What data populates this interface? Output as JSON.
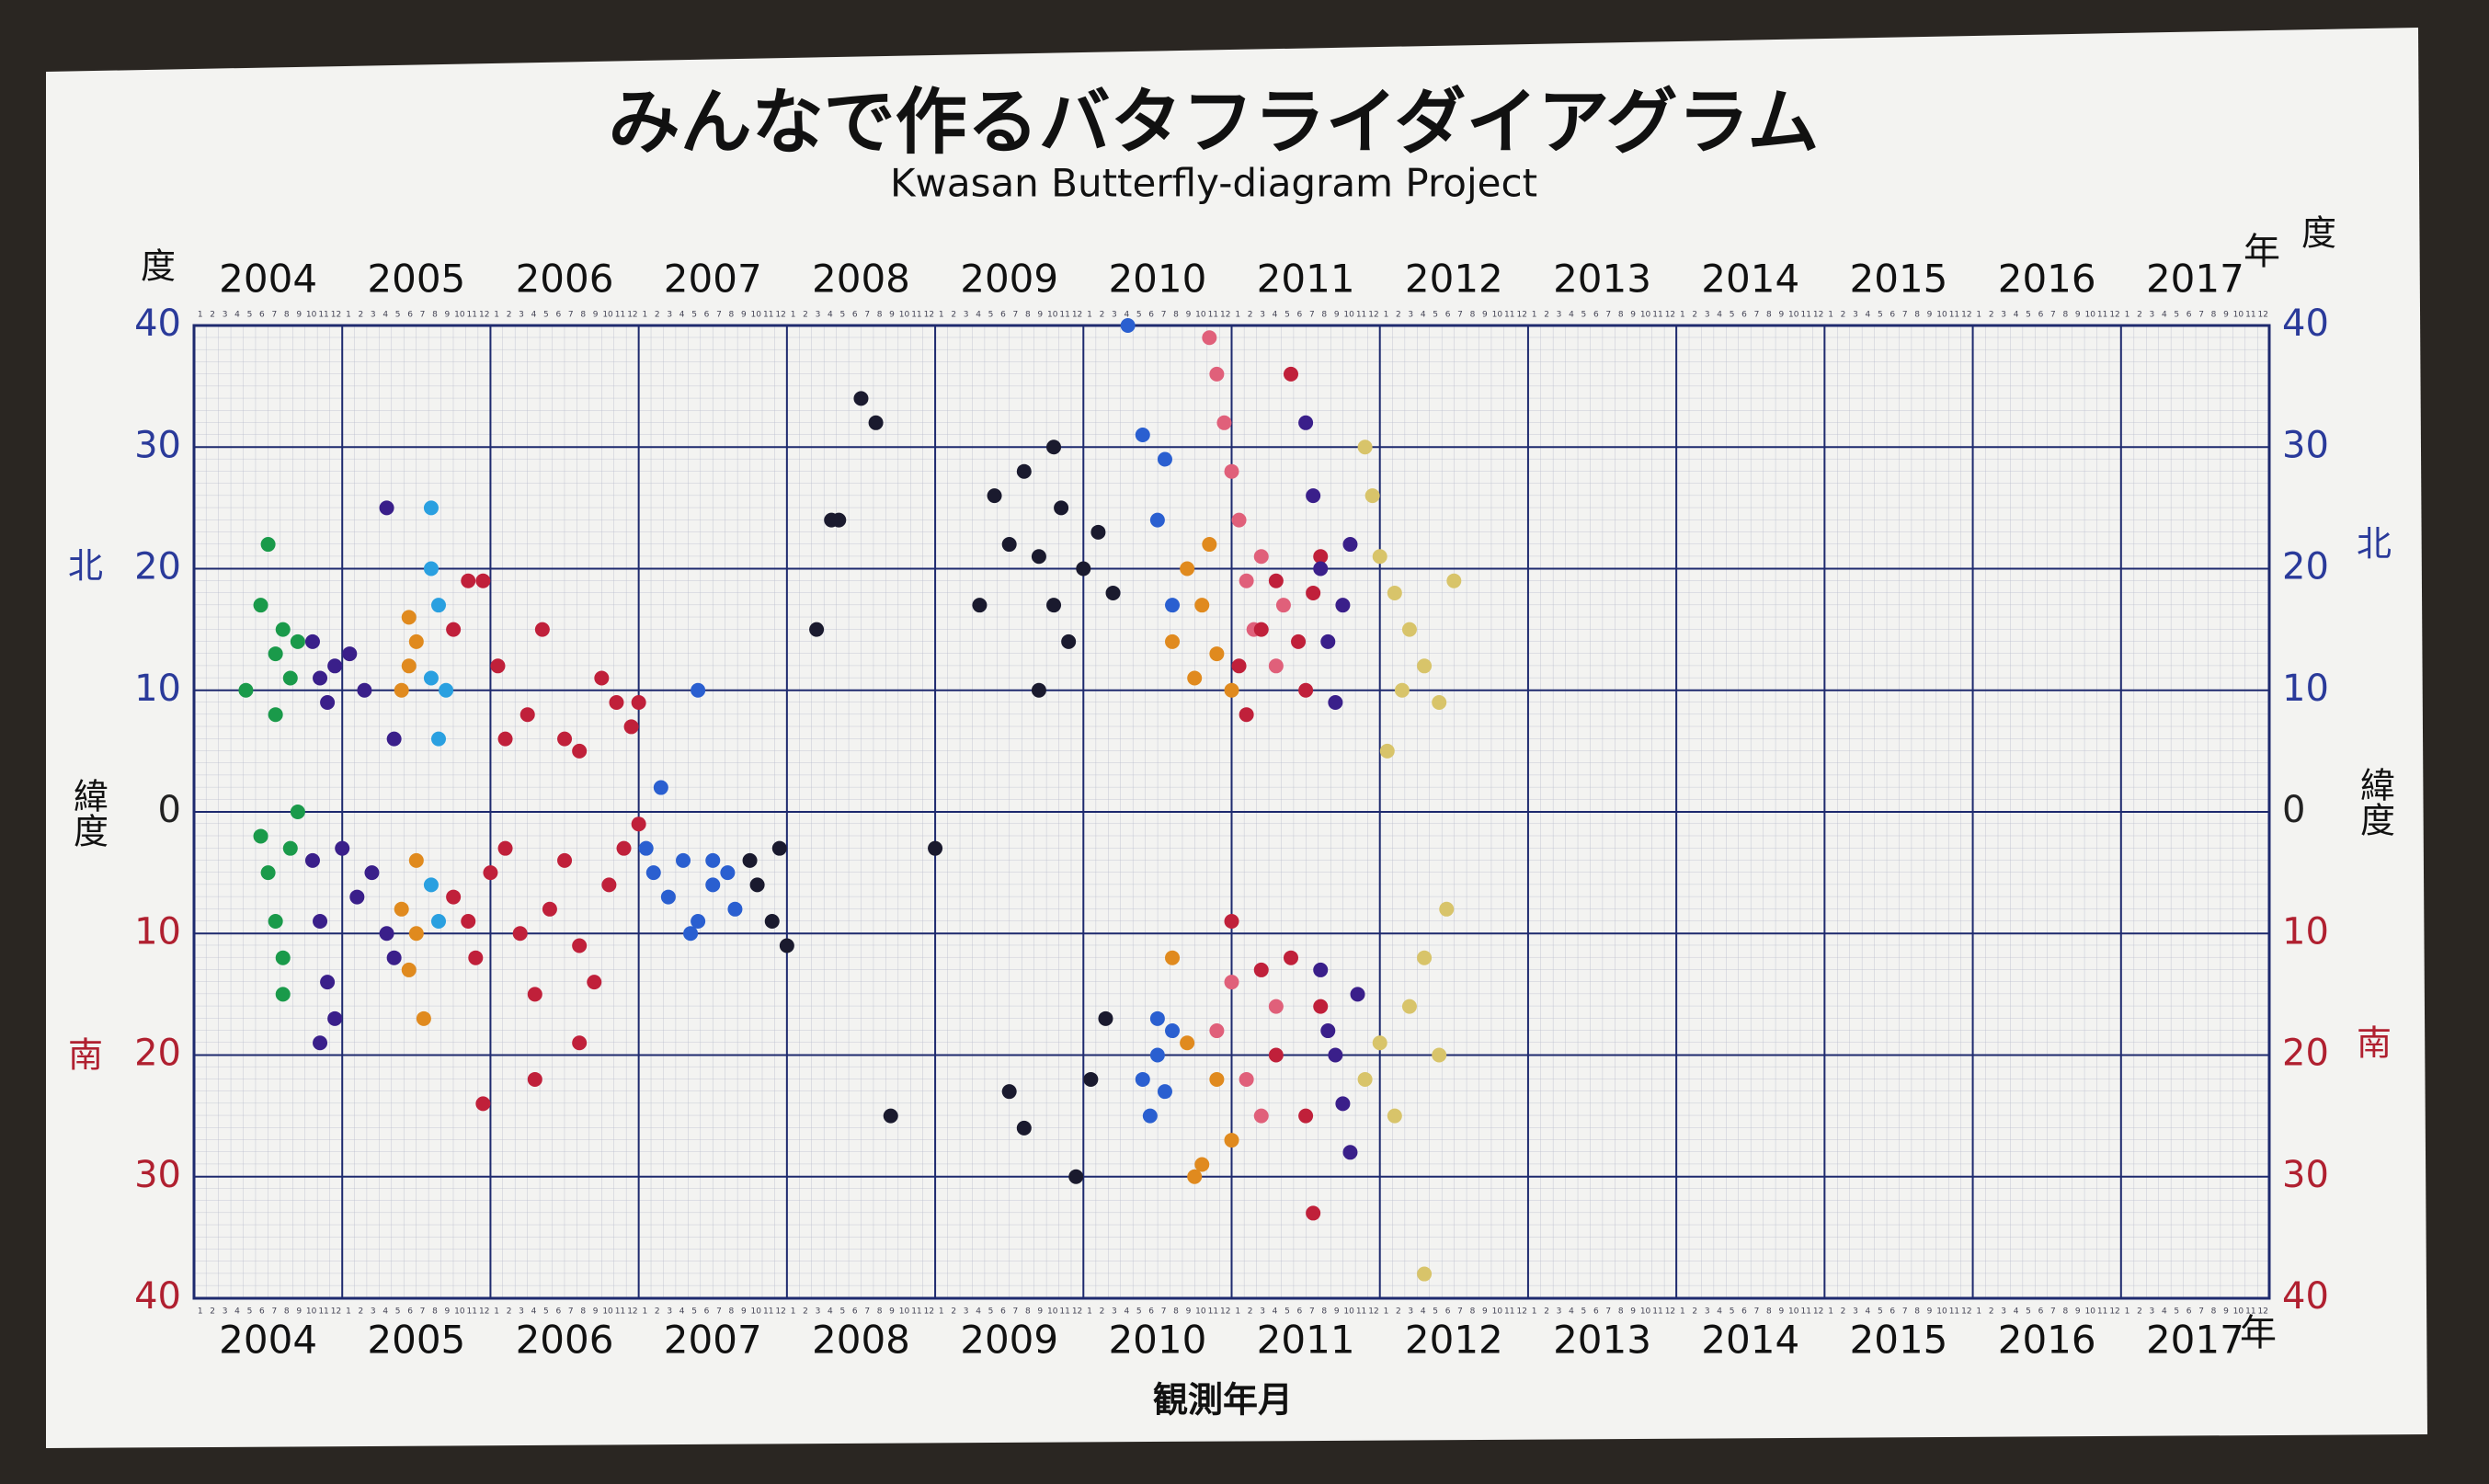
{
  "chart_data": {
    "type": "scatter",
    "title": "みんなで作るバタフライダイアグラム",
    "subtitle": "Kwasan Butterfly-diagram Project",
    "xlabel": "観測年月",
    "ylabel": "緯度",
    "x_unit": "年",
    "y_unit": "度",
    "north_label": "北",
    "south_label": "南",
    "xlim": [
      2004,
      2018
    ],
    "xticks": [
      2004,
      2005,
      2006,
      2007,
      2008,
      2009,
      2010,
      2011,
      2012,
      2013,
      2014,
      2015,
      2016,
      2017
    ],
    "month_labels": [
      1,
      2,
      3,
      4,
      5,
      6,
      7,
      8,
      9,
      10,
      11,
      12
    ],
    "ylim": [
      -40,
      40
    ],
    "yticks": [
      {
        "value": -40,
        "label": "40"
      },
      {
        "value": -30,
        "label": "30"
      },
      {
        "value": -20,
        "label": "20"
      },
      {
        "value": -10,
        "label": "10"
      },
      0,
      10,
      20,
      30,
      40
    ],
    "grid": true,
    "series": [
      {
        "color": "#1a9a4a",
        "x": [
          2004.35,
          2004.45,
          2004.5,
          2004.55,
          2004.55,
          2004.6,
          2004.65,
          2004.7,
          2004.5,
          2004.55,
          2004.6,
          2004.65,
          2004.7,
          2004.6,
          2004.45
        ],
        "values": [
          10,
          17,
          22,
          13,
          8,
          15,
          11,
          14,
          -5,
          -9,
          -12,
          -3,
          0,
          -15,
          -2
        ]
      },
      {
        "color": "#3a1f8a",
        "x": [
          2004.8,
          2004.85,
          2004.9,
          2004.95,
          2005.05,
          2005.15,
          2005.3,
          2005.35,
          2004.8,
          2004.85,
          2004.9,
          2004.95,
          2005.1,
          2005.2,
          2005.3,
          2005.35,
          2004.85,
          2005.0
        ],
        "values": [
          14,
          11,
          9,
          12,
          13,
          10,
          25,
          6,
          -4,
          -9,
          -14,
          -17,
          -7,
          -5,
          -10,
          -12,
          -19,
          -3
        ]
      },
      {
        "color": "#e08a1e",
        "x": [
          2005.4,
          2005.45,
          2005.5,
          2005.45,
          2005.5,
          2005.4,
          2005.45,
          2005.55,
          2005.5
        ],
        "values": [
          10,
          16,
          14,
          12,
          -4,
          -8,
          -13,
          -17,
          -10
        ]
      },
      {
        "color": "#2aa0e0",
        "x": [
          2005.6,
          2005.6,
          2005.65,
          2005.6,
          2005.7,
          2005.65,
          2005.6,
          2005.65
        ],
        "values": [
          25,
          20,
          17,
          11,
          10,
          6,
          -6,
          -9
        ]
      },
      {
        "color": "#c0203a",
        "x": [
          2005.75,
          2005.85,
          2005.95,
          2006.05,
          2006.1,
          2006.25,
          2006.35,
          2006.5,
          2006.6,
          2006.75,
          2006.85,
          2006.95,
          2007.0,
          2005.75,
          2005.85,
          2005.9,
          2006.0,
          2006.1,
          2006.2,
          2006.3,
          2006.4,
          2006.5,
          2006.6,
          2006.7,
          2006.8,
          2006.9,
          2007.0,
          2005.95,
          2006.3,
          2006.6
        ],
        "values": [
          15,
          19,
          19,
          12,
          6,
          8,
          15,
          6,
          5,
          11,
          9,
          7,
          9,
          -7,
          -9,
          -12,
          -5,
          -3,
          -10,
          -15,
          -8,
          -4,
          -11,
          -14,
          -6,
          -3,
          -1,
          -24,
          -22,
          -19
        ]
      },
      {
        "color": "#2a5fd0",
        "x": [
          2007.05,
          2007.1,
          2007.2,
          2007.3,
          2007.4,
          2007.5,
          2007.6,
          2007.65,
          2007.15,
          2007.35,
          2007.5,
          2007.4
        ],
        "values": [
          -3,
          -5,
          -7,
          -4,
          -9,
          -6,
          -5,
          -8,
          2,
          -10,
          -4,
          10
        ]
      },
      {
        "color": "#1a1a2e",
        "x": [
          2007.75,
          2007.8,
          2007.9,
          2007.95,
          2008.0,
          2008.2,
          2008.3,
          2008.35,
          2008.5,
          2008.6,
          2008.7,
          2009.0,
          2009.3,
          2009.4,
          2009.5,
          2009.6,
          2009.7,
          2009.8,
          2009.85,
          2009.9,
          2010.0,
          2010.1,
          2010.2,
          2009.5,
          2009.6,
          2009.95,
          2010.05,
          2010.15,
          2009.7,
          2009.8
        ],
        "values": [
          -4,
          -6,
          -9,
          -3,
          -11,
          15,
          24,
          24,
          34,
          32,
          -25,
          -3,
          17,
          26,
          22,
          28,
          21,
          30,
          25,
          14,
          20,
          23,
          18,
          -23,
          -26,
          -30,
          -22,
          -17,
          10,
          17
        ]
      },
      {
        "color": "#2a5fd0",
        "x": [
          2010.3,
          2010.4,
          2010.5,
          2010.55,
          2010.6,
          2010.5,
          2010.6,
          2010.4,
          2010.45,
          2010.5,
          2010.55
        ],
        "values": [
          40,
          31,
          24,
          29,
          17,
          -20,
          -18,
          -22,
          -25,
          -17,
          -23
        ]
      },
      {
        "color": "#e08a1e",
        "x": [
          2010.6,
          2010.7,
          2010.75,
          2010.8,
          2010.85,
          2010.9,
          2011.0,
          2010.6,
          2010.7,
          2010.8,
          2010.9,
          2011.0,
          2010.75
        ],
        "values": [
          14,
          20,
          11,
          17,
          22,
          13,
          10,
          -12,
          -19,
          -29,
          -22,
          -27,
          -30
        ]
      },
      {
        "color": "#e0607a",
        "x": [
          2010.85,
          2010.9,
          2010.95,
          2011.0,
          2011.05,
          2011.1,
          2011.15,
          2011.2,
          2011.3,
          2011.35,
          2010.9,
          2011.0,
          2011.1,
          2011.2,
          2011.3
        ],
        "values": [
          39,
          36,
          32,
          28,
          24,
          19,
          15,
          21,
          12,
          17,
          -18,
          -14,
          -22,
          -25,
          -16
        ]
      },
      {
        "color": "#c0203a",
        "x": [
          2011.05,
          2011.1,
          2011.2,
          2011.3,
          2011.4,
          2011.45,
          2011.5,
          2011.55,
          2011.6,
          2011.2,
          2011.3,
          2011.4,
          2011.5,
          2011.6,
          2011.0,
          2011.55
        ],
        "values": [
          12,
          8,
          15,
          19,
          36,
          14,
          10,
          18,
          21,
          -13,
          -20,
          -12,
          -25,
          -16,
          -9,
          -33
        ]
      },
      {
        "color": "#3a1f8a",
        "x": [
          2011.5,
          2011.55,
          2011.6,
          2011.65,
          2011.7,
          2011.75,
          2011.8,
          2011.6,
          2011.65,
          2011.7,
          2011.75,
          2011.8,
          2011.85
        ],
        "values": [
          32,
          26,
          20,
          14,
          9,
          17,
          22,
          -13,
          -18,
          -20,
          -24,
          -28,
          -15
        ]
      },
      {
        "color": "#d8c46a",
        "x": [
          2011.9,
          2011.95,
          2012.0,
          2012.1,
          2012.2,
          2012.3,
          2012.4,
          2012.5,
          2012.05,
          2012.15,
          2011.9,
          2012.0,
          2012.1,
          2012.2,
          2012.3,
          2012.4,
          2012.45,
          2012.3
        ],
        "values": [
          30,
          26,
          21,
          18,
          15,
          12,
          9,
          19,
          5,
          10,
          -22,
          -19,
          -25,
          -16,
          -12,
          -20,
          -8,
          -38
        ]
      }
    ]
  }
}
